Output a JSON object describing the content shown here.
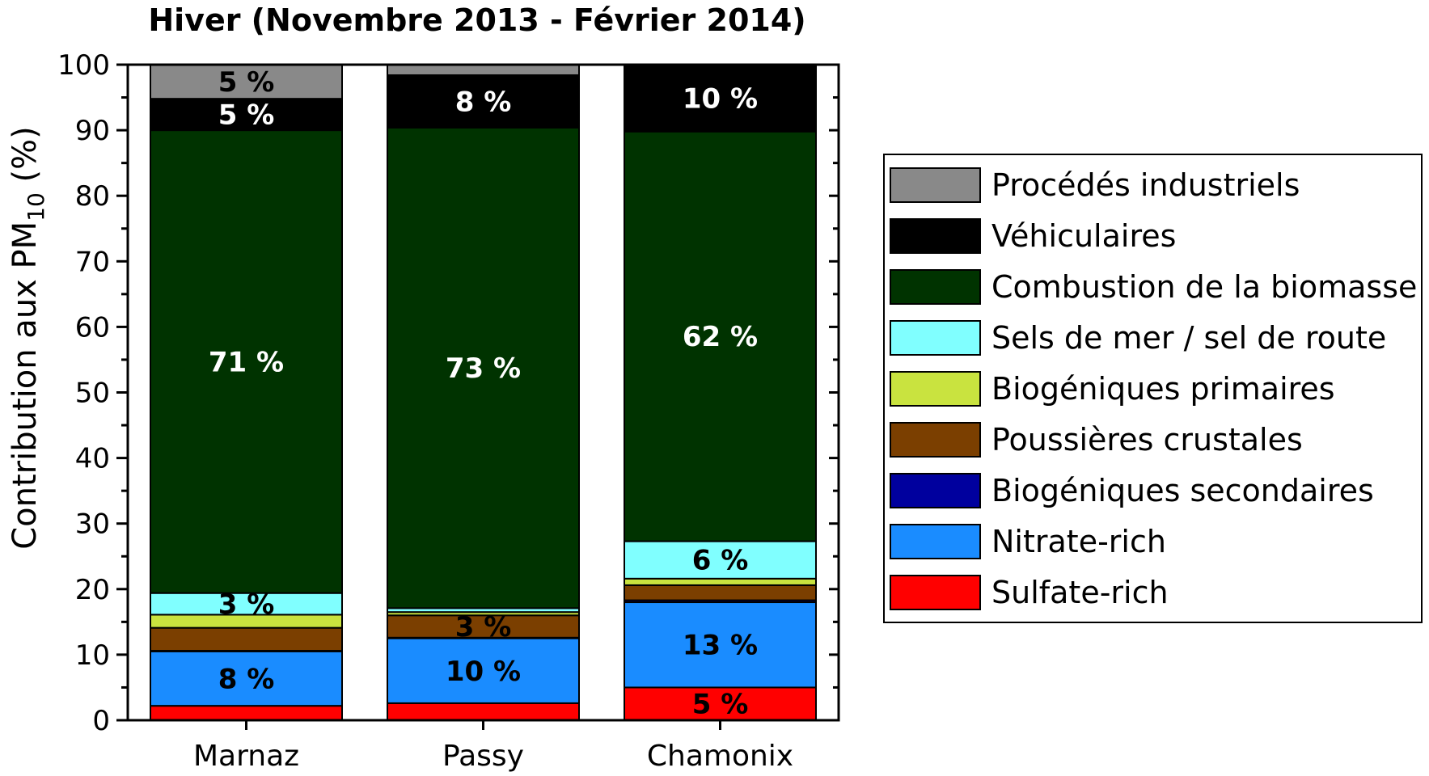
{
  "chart_data": {
    "type": "bar",
    "stacked": true,
    "title": "Hiver (Novembre 2013 - Février 2014)",
    "ylabel": "Contribution aux PM",
    "ylabel_subscript": "10",
    "ylabel_suffix": " (%)",
    "xlabel": "",
    "ylim": [
      0,
      100
    ],
    "yticks": [
      "0",
      "10",
      "20",
      "30",
      "40",
      "50",
      "60",
      "70",
      "80",
      "90",
      "100"
    ],
    "categories": [
      "Marnaz",
      "Passy",
      "Chamonix"
    ],
    "legend_position": "right",
    "series": [
      {
        "name": "Sulfate-rich",
        "color": "#ff0000",
        "values": [
          2.2,
          2.6,
          5.0
        ],
        "labels": [
          "",
          "",
          "5 %"
        ],
        "label_color": "#000000"
      },
      {
        "name": "Nitrate-rich",
        "color": "#1a8cff",
        "values": [
          8.3,
          9.9,
          13.0
        ],
        "labels": [
          "8 %",
          "10 %",
          "13 %"
        ],
        "label_color": "#000000"
      },
      {
        "name": "Biogéniques secondaires",
        "color": "#00009e",
        "values": [
          0.1,
          0.1,
          0.3
        ],
        "labels": [
          "",
          "",
          ""
        ],
        "label_color": "#000000"
      },
      {
        "name": "Poussières crustales",
        "color": "#7b3f00",
        "values": [
          3.5,
          3.4,
          2.3
        ],
        "labels": [
          "",
          "3 %",
          ""
        ],
        "label_color": "#000000"
      },
      {
        "name": "Biogéniques primaires",
        "color": "#c9e33f",
        "values": [
          2.0,
          0.5,
          1.0
        ],
        "labels": [
          "",
          "",
          ""
        ],
        "label_color": "#000000"
      },
      {
        "name": "Sels de mer / sel de route",
        "color": "#80ffff",
        "values": [
          3.3,
          0.6,
          5.7
        ],
        "labels": [
          "3 %",
          "",
          "6 %"
        ],
        "label_color": "#000000"
      },
      {
        "name": "Combustion de la biomasse",
        "color": "#003300",
        "values": [
          70.6,
          73.3,
          62.5
        ],
        "labels": [
          "71 %",
          "73 %",
          "62 %"
        ],
        "label_color": "#ffffff"
      },
      {
        "name": "Véhiculaires",
        "color": "#000000",
        "values": [
          4.8,
          8.0,
          10.2
        ],
        "labels": [
          "5 %",
          "8 %",
          "10 %"
        ],
        "label_color": "#ffffff"
      },
      {
        "name": "Procédés industriels",
        "color": "#898989",
        "values": [
          5.2,
          1.6,
          0.0
        ],
        "labels": [
          "5 %",
          "",
          ""
        ],
        "label_color": "#000000"
      }
    ],
    "legend_order": [
      "Procédés industriels",
      "Véhiculaires",
      "Combustion de la biomasse",
      "Sels de mer / sel de route",
      "Biogéniques primaires",
      "Poussières crustales",
      "Biogéniques secondaires",
      "Nitrate-rich",
      "Sulfate-rich"
    ]
  }
}
